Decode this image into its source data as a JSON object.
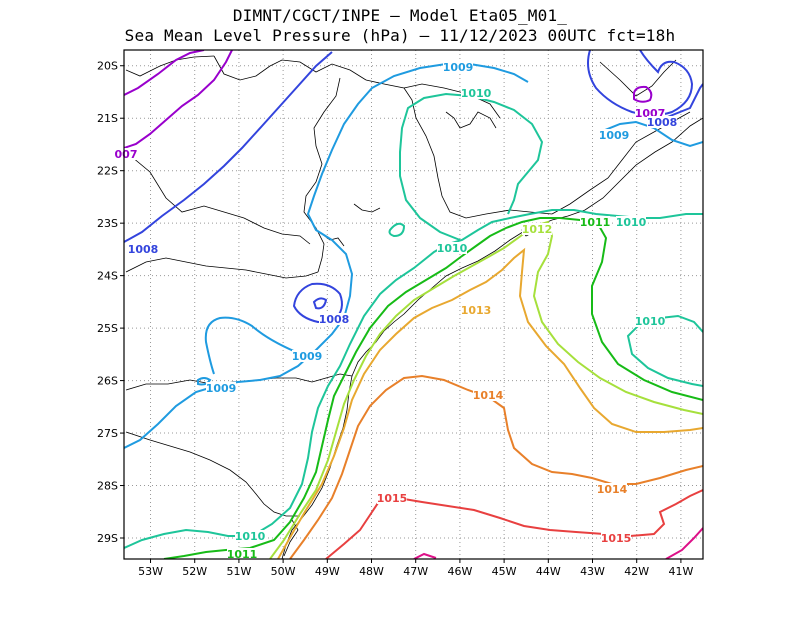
{
  "title_line1": "DIMNT/CGCT/INPE –  Model Eta05_M01_",
  "title_line2": "Sea Mean Level Pressure (hPa) – 11/12/2023 00UTC fct=18h",
  "chart_data": {
    "type": "contour map",
    "variable": "Sea Mean Level Pressure",
    "units": "hPa",
    "contour_interval": 1,
    "xaxis": {
      "range": [
        -53.6,
        -40.5
      ],
      "ticks": [
        "53W",
        "52W",
        "51W",
        "50W",
        "49W",
        "48W",
        "47W",
        "46W",
        "45W",
        "44W",
        "43W",
        "42W",
        "41W"
      ]
    },
    "yaxis": {
      "range": [
        -29.4,
        -19.7
      ],
      "ticks": [
        "20S",
        "21S",
        "22S",
        "23S",
        "24S",
        "25S",
        "26S",
        "27S",
        "28S",
        "29S"
      ]
    },
    "grid": "dotted",
    "contours": [
      {
        "level": 1007,
        "color": "#9900cc",
        "labels": [
          "1007",
          "007"
        ]
      },
      {
        "level": 1008,
        "color": "#3344dd",
        "labels": [
          "1008",
          "1008",
          "1008"
        ]
      },
      {
        "level": 1009,
        "color": "#1f9be0",
        "labels": [
          "1009",
          "1009",
          "1009",
          "1009"
        ]
      },
      {
        "level": 1010,
        "color": "#1ec59a",
        "labels": [
          "1010",
          "1010",
          "1010",
          "1010",
          "1010"
        ]
      },
      {
        "level": 1011,
        "color": "#17bb17",
        "labels": [
          "1011",
          "1011"
        ]
      },
      {
        "level": 1012,
        "color": "#a6e03c",
        "labels": [
          "1012"
        ]
      },
      {
        "level": 1013,
        "color": "#e8a830",
        "labels": [
          "1013"
        ]
      },
      {
        "level": 1014,
        "color": "#e8802a",
        "labels": [
          "1014",
          "1014"
        ]
      },
      {
        "level": 1015,
        "color": "#e84040",
        "labels": [
          "1015",
          "1015"
        ]
      },
      {
        "level": 1016,
        "color": "#dd1188",
        "labels": []
      }
    ]
  }
}
